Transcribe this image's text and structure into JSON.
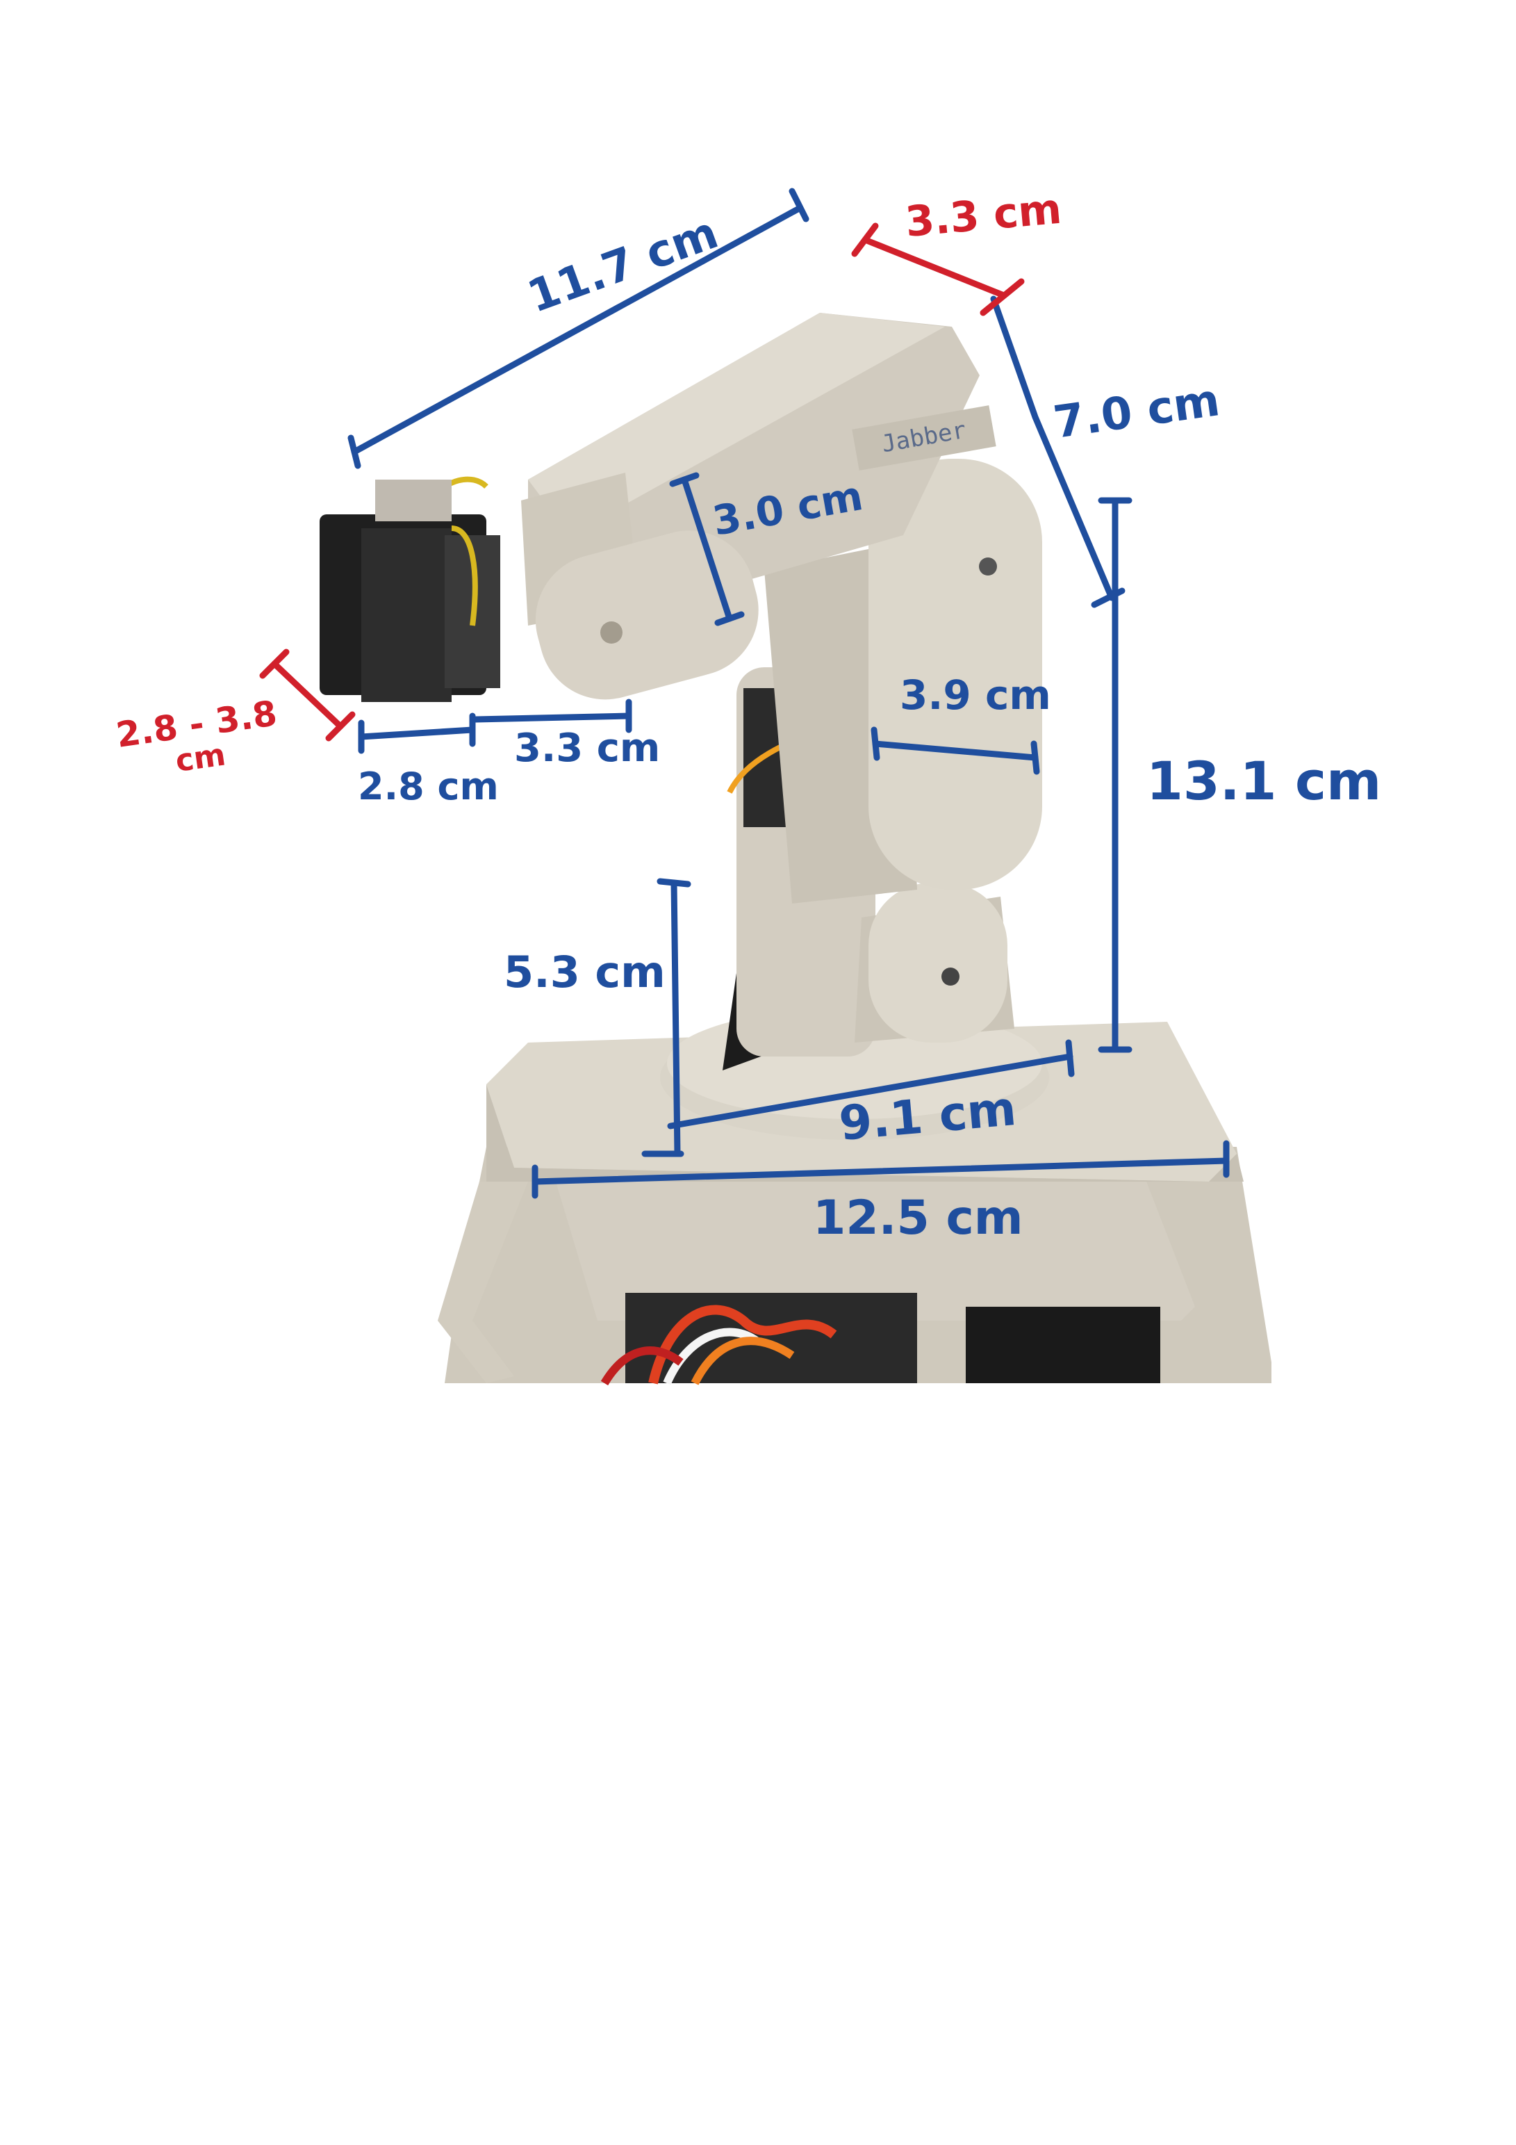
{
  "robot": {
    "name_tag": "Jabber"
  },
  "measurements": {
    "upper_arm_length": "11.7 cm",
    "top_joint_width": "3.3 cm",
    "forearm_length": "7.0 cm",
    "upper_arm_height": "3.0 cm",
    "gripper_opening": "2.8 - 3.8",
    "gripper_opening_unit": "cm",
    "gripper_length": "2.8 cm",
    "wrist_length": "3.3 cm",
    "lower_arm_width": "3.9 cm",
    "total_height": "13.1 cm",
    "base_height": "5.3 cm",
    "turntable_diameter": "9.1 cm",
    "base_width": "12.5 cm"
  },
  "colors": {
    "annotation_blue": "#1f4e9e",
    "annotation_red": "#d1202b",
    "plastic": "#d8d3c8",
    "plastic_shadow": "#b9b3a6",
    "servo_black": "#1c1c1c"
  }
}
